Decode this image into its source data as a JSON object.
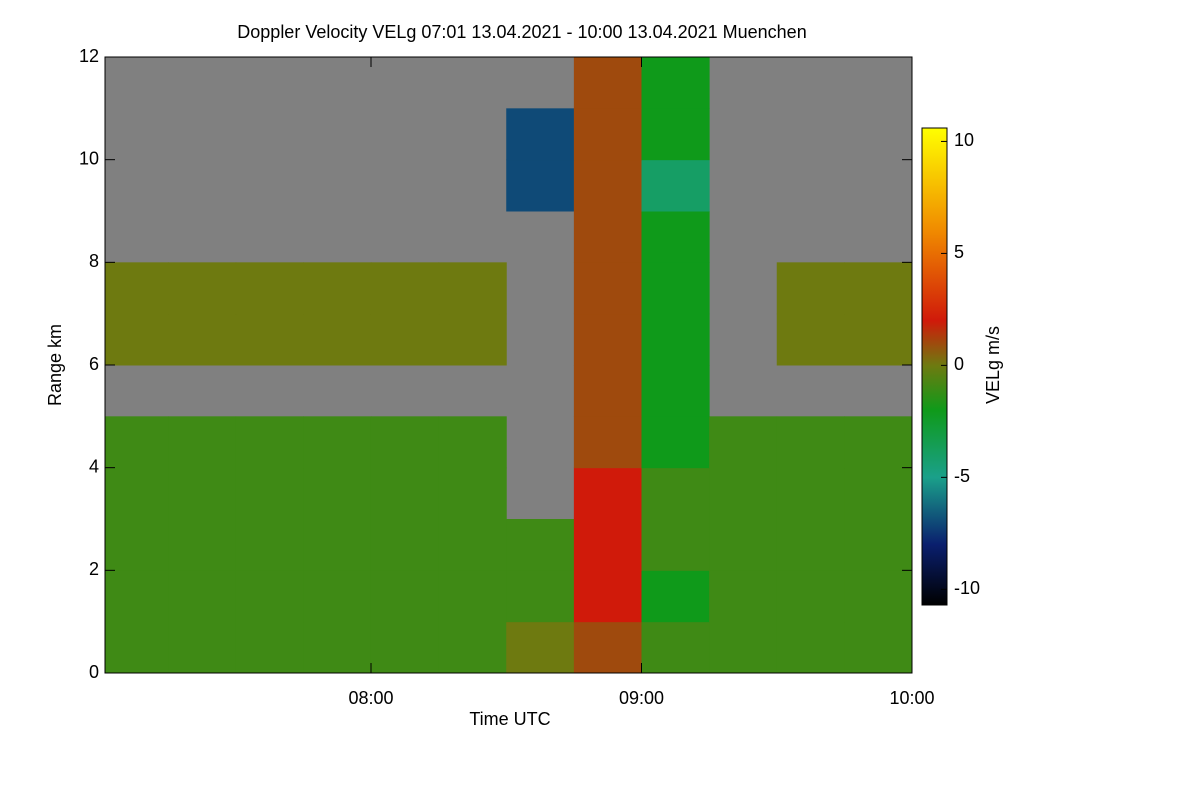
{
  "chart_data": {
    "type": "heatmap",
    "title": "Doppler Velocity VELg   07:01 13.04.2021 - 10:00 13.04.2021 Muenchen",
    "x_label": "Time UTC",
    "y_label": "Range km",
    "colorbar_label": "VELg m/s",
    "x": [
      7.125,
      7.375,
      7.625,
      7.875,
      8.125,
      8.375,
      8.625,
      8.875,
      9.125,
      9.375,
      9.625,
      9.875
    ],
    "y": [
      0.5,
      1.5,
      2.5,
      3.5,
      4.5,
      5.5,
      6.5,
      7.5,
      8.5,
      9.5,
      10.5,
      11.5
    ],
    "z": [
      [
        -1,
        -1,
        -1,
        -1,
        -1,
        -1,
        0,
        1,
        -1,
        -1,
        -1,
        -1
      ],
      [
        -1,
        -1,
        -1,
        -1,
        -1,
        -1,
        -1,
        2,
        -2,
        -1,
        -1,
        -1
      ],
      [
        -1,
        -1,
        -1,
        -1,
        -1,
        -1,
        -1,
        2,
        -1,
        -1,
        -1,
        -1
      ],
      [
        -1,
        -1,
        -1,
        -1,
        -1,
        -1,
        null,
        2,
        -1,
        -1,
        -1,
        -1
      ],
      [
        -1,
        -1,
        -1,
        -1,
        -1,
        -1,
        null,
        1,
        -2,
        -1,
        -1,
        -1
      ],
      [
        null,
        null,
        null,
        null,
        null,
        null,
        null,
        1,
        -2,
        null,
        null,
        null
      ],
      [
        0,
        0,
        0,
        0,
        0,
        0,
        null,
        1,
        -2,
        null,
        0,
        0
      ],
      [
        0,
        0,
        0,
        0,
        0,
        0,
        null,
        1,
        -2,
        null,
        0,
        0
      ],
      [
        null,
        null,
        null,
        null,
        null,
        null,
        null,
        1,
        -2,
        null,
        null,
        null
      ],
      [
        null,
        null,
        null,
        null,
        null,
        null,
        -7,
        1,
        -4,
        null,
        null,
        null
      ],
      [
        null,
        null,
        null,
        null,
        null,
        null,
        -7,
        1,
        -2,
        null,
        null,
        null
      ],
      [
        null,
        null,
        null,
        null,
        null,
        null,
        null,
        1,
        -2,
        null,
        null,
        null
      ]
    ],
    "nan_color": "#808080",
    "colorscale": [
      [
        -10.7,
        "#000000"
      ],
      [
        -8,
        "#0a1f6e"
      ],
      [
        -5,
        "#1aa08a"
      ],
      [
        -2,
        "#0f9a1a"
      ],
      [
        0,
        "#6e7a10"
      ],
      [
        2,
        "#d01a0a"
      ],
      [
        6,
        "#f08a00"
      ],
      [
        10.6,
        "#ffff00"
      ]
    ],
    "xlim": [
      7.0167,
      10.0
    ],
    "ylim": [
      0,
      12
    ],
    "zlim": [
      -10.7,
      10.6
    ],
    "xticks": [
      {
        "value": 8,
        "label": "08:00"
      },
      {
        "value": 9,
        "label": "09:00"
      },
      {
        "value": 10,
        "label": "10:00"
      }
    ],
    "yticks": [
      0,
      2,
      4,
      6,
      8,
      10,
      12
    ],
    "zticks": [
      -10,
      -5,
      0,
      5,
      10
    ]
  }
}
